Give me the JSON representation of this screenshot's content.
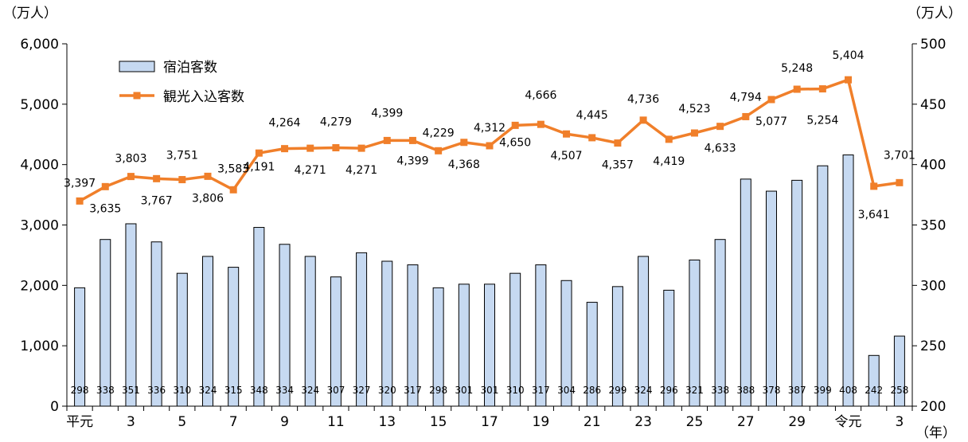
{
  "chart_data": {
    "type": "bar+line",
    "title": "",
    "left_unit": "（万人）",
    "right_unit": "（万人）",
    "year_unit": "（年）",
    "left_ylim": [
      0,
      6000
    ],
    "left_ticks": [
      "0",
      "1,000",
      "2,000",
      "3,000",
      "4,000",
      "5,000",
      "6,000"
    ],
    "right_ylim": [
      200,
      500
    ],
    "right_ticks": [
      "200",
      "250",
      "300",
      "350",
      "400",
      "450",
      "500"
    ],
    "x_ticks": [
      "平元",
      "3",
      "5",
      "7",
      "9",
      "11",
      "13",
      "15",
      "17",
      "19",
      "21",
      "23",
      "25",
      "27",
      "29",
      "令元",
      "3"
    ],
    "legend": {
      "position": "top-left",
      "bar_label": "宿泊客数",
      "line_label": "観光入込客数"
    },
    "colors": {
      "bar_fill": "#c6d9f1",
      "bar_stroke": "#000000",
      "line": "#f07f2a"
    },
    "bars": {
      "name": "宿泊客数",
      "values": [
        298,
        338,
        351,
        336,
        310,
        324,
        315,
        348,
        334,
        324,
        307,
        327,
        320,
        317,
        298,
        301,
        301,
        310,
        317,
        304,
        286,
        299,
        324,
        296,
        321,
        338,
        388,
        378,
        387,
        399,
        408,
        242,
        258
      ],
      "labels": [
        "298",
        "338",
        "351",
        "336",
        "310",
        "324",
        "315",
        "348",
        "334",
        "324",
        "307",
        "327",
        "320",
        "317",
        "298",
        "301",
        "301",
        "310",
        "317",
        "304",
        "286",
        "299",
        "324",
        "296",
        "321",
        "338",
        "388",
        "378",
        "387",
        "399",
        "408",
        "242",
        "258"
      ]
    },
    "line": {
      "name": "観光入込客数",
      "values": [
        3397,
        3635,
        3803,
        3767,
        3751,
        3806,
        3583,
        4191,
        4264,
        4271,
        4279,
        4271,
        4399,
        4399,
        4229,
        4368,
        4312,
        4650,
        4666,
        4507,
        4445,
        4357,
        4736,
        4419,
        4523,
        4633,
        4794,
        5077,
        5248,
        5254,
        5404,
        3641,
        3701
      ],
      "labels": [
        "3,397",
        "3,635",
        "3,803",
        "3,767",
        "3,751",
        "3,806",
        "3,583",
        "4,191",
        "4,264",
        "4,271",
        "4,279",
        "4,271",
        "4,399",
        "4,399",
        "4,229",
        "4,368",
        "4,312",
        "4,650",
        "4,666",
        "4,507",
        "4,445",
        "4,357",
        "4,736",
        "4,419",
        "4,523",
        "4,633",
        "4,794",
        "5,077",
        "5,248",
        "5,254",
        "5,404",
        "3,641",
        "3,701"
      ]
    }
  }
}
